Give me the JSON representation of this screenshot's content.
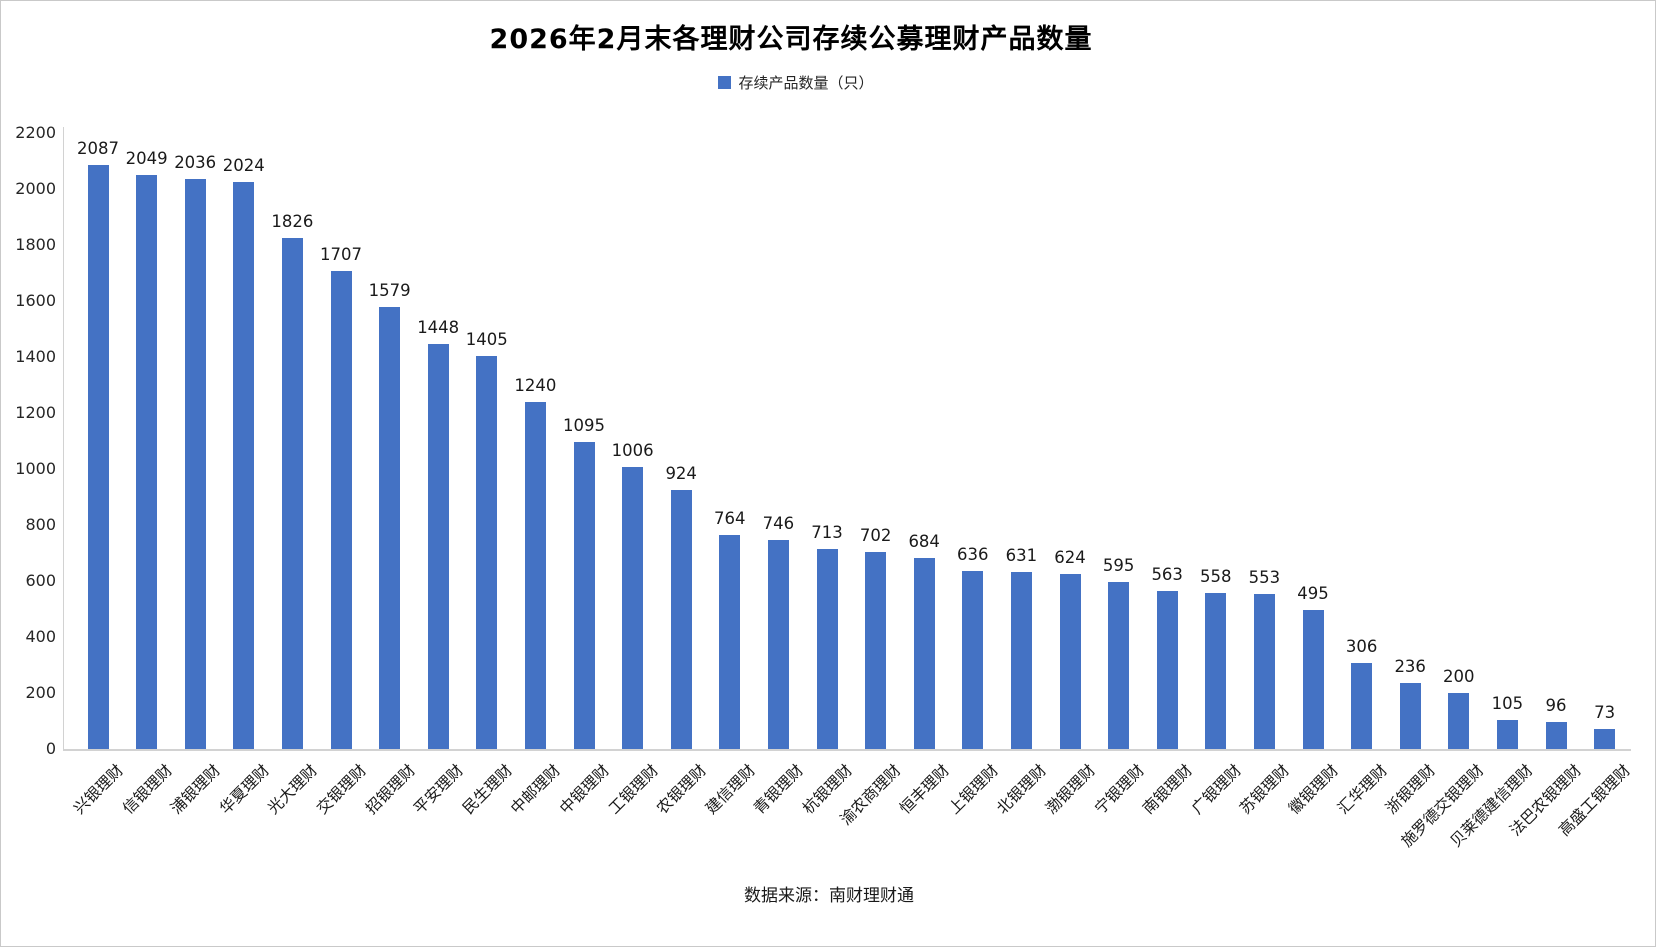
{
  "title": "2026年2月末各理财公司存续公募理财产品数量",
  "legend": {
    "label": "存续产品数量（只）"
  },
  "source_note": "数据来源：南财理财通",
  "colors": {
    "bar": "#4472C4",
    "axis_line": "#d2d2d2",
    "tick_text": "#262626",
    "title_text": "#000000"
  },
  "chart_data": {
    "type": "bar",
    "title": "2026年2月末各理财公司存续公募理财产品数量",
    "series": [
      {
        "name": "存续产品数量（只）",
        "values": [
          2087,
          2049,
          2036,
          2024,
          1826,
          1707,
          1579,
          1448,
          1405,
          1240,
          1095,
          1006,
          924,
          764,
          746,
          713,
          702,
          684,
          636,
          631,
          624,
          595,
          563,
          558,
          553,
          495,
          306,
          236,
          200,
          105,
          96,
          73
        ]
      }
    ],
    "categories": [
      "兴银理财",
      "信银理财",
      "浦银理财",
      "华夏理财",
      "光大理财",
      "交银理财",
      "招银理财",
      "平安理财",
      "民生理财",
      "中邮理财",
      "中银理财",
      "工银理财",
      "农银理财",
      "建信理财",
      "青银理财",
      "杭银理财",
      "渝农商理财",
      "恒丰理财",
      "上银理财",
      "北银理财",
      "渤银理财",
      "宁银理财",
      "南银理财",
      "广银理财",
      "苏银理财",
      "徽银理财",
      "汇华理财",
      "浙银理财",
      "施罗德交银理财",
      "贝莱德建信理财",
      "法巴农银理财",
      "高盛工银理财"
    ],
    "ylim": [
      0,
      2200
    ],
    "ytick_interval": 200,
    "yticks": [
      0,
      200,
      400,
      600,
      800,
      1000,
      1200,
      1400,
      1600,
      1800,
      2000,
      2200
    ],
    "grid": false,
    "legend_position": "top-center",
    "value_labels": true,
    "x_tick_rotation": 45,
    "xlabel": "",
    "ylabel": "",
    "source": "数据来源：南财理财通"
  }
}
